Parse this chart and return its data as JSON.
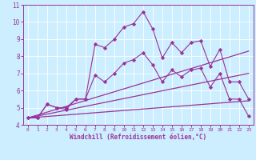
{
  "title": "",
  "xlabel": "Windchill (Refroidissement éolien,°C)",
  "ylabel": "",
  "xlim": [
    -0.5,
    23.5
  ],
  "ylim": [
    4,
    11
  ],
  "yticks": [
    4,
    5,
    6,
    7,
    8,
    9,
    10,
    11
  ],
  "xticks": [
    0,
    1,
    2,
    3,
    4,
    5,
    6,
    7,
    8,
    9,
    10,
    11,
    12,
    13,
    14,
    15,
    16,
    17,
    18,
    19,
    20,
    21,
    22,
    23
  ],
  "background_color": "#cceeff",
  "line_color": "#993399",
  "series": [
    {
      "x": [
        0,
        1,
        2,
        3,
        4,
        5,
        6,
        7,
        8,
        9,
        10,
        11,
        12,
        13,
        14,
        15,
        16,
        17,
        18,
        19,
        20,
        21,
        22,
        23
      ],
      "y": [
        4.4,
        4.4,
        5.2,
        5.0,
        4.9,
        5.5,
        5.5,
        8.7,
        8.5,
        9.0,
        9.7,
        9.9,
        10.6,
        9.6,
        7.9,
        8.8,
        8.2,
        8.8,
        8.9,
        7.4,
        8.4,
        6.5,
        6.5,
        5.5
      ],
      "marker": "D",
      "markersize": 2.2,
      "linewidth": 0.8,
      "has_marker": true
    },
    {
      "x": [
        0,
        1,
        2,
        3,
        4,
        5,
        6,
        7,
        8,
        9,
        10,
        11,
        12,
        13,
        14,
        15,
        16,
        17,
        18,
        19,
        20,
        21,
        22,
        23
      ],
      "y": [
        4.4,
        4.4,
        5.2,
        5.0,
        5.0,
        5.5,
        5.5,
        6.9,
        6.5,
        7.0,
        7.6,
        7.8,
        8.2,
        7.5,
        6.5,
        7.2,
        6.8,
        7.2,
        7.3,
        6.2,
        7.0,
        5.5,
        5.5,
        4.5
      ],
      "marker": "D",
      "markersize": 2.2,
      "linewidth": 0.8,
      "has_marker": true
    },
    {
      "x": [
        0,
        23
      ],
      "y": [
        4.4,
        8.3
      ],
      "marker": null,
      "markersize": 0,
      "linewidth": 0.9,
      "has_marker": false
    },
    {
      "x": [
        0,
        23
      ],
      "y": [
        4.4,
        5.4
      ],
      "marker": null,
      "markersize": 0,
      "linewidth": 0.9,
      "has_marker": false
    },
    {
      "x": [
        0,
        23
      ],
      "y": [
        4.4,
        7.0
      ],
      "marker": null,
      "markersize": 0,
      "linewidth": 0.9,
      "has_marker": false
    }
  ]
}
